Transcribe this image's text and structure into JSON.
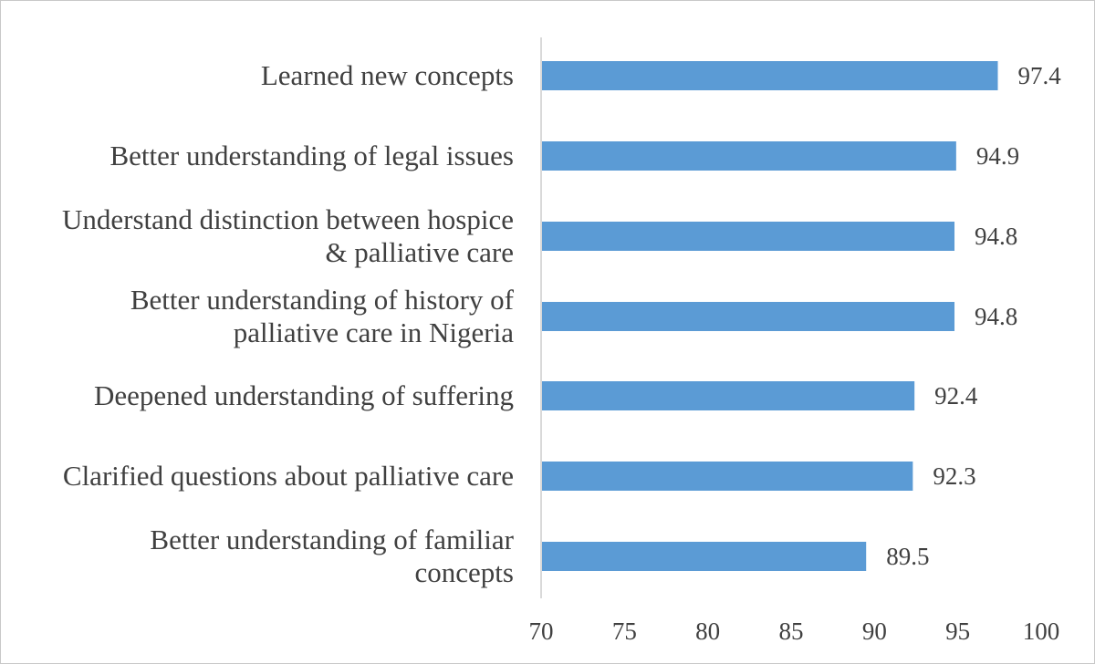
{
  "chart_data": {
    "type": "bar",
    "orientation": "horizontal",
    "title": "",
    "xlabel": "",
    "ylabel": "",
    "categories": [
      [
        "Learned new concepts"
      ],
      [
        "Better understanding of legal issues"
      ],
      [
        "Understand distinction between hospice",
        "& palliative care"
      ],
      [
        "Better understanding of history of",
        "palliative care in Nigeria"
      ],
      [
        "Deepened understanding of suffering"
      ],
      [
        "Clarified questions about palliative care"
      ],
      [
        "Better understanding of familiar",
        "concepts"
      ]
    ],
    "values": [
      97.4,
      94.9,
      94.8,
      94.8,
      92.4,
      92.3,
      89.5
    ],
    "value_labels": [
      "97.4",
      "94.9",
      "94.8",
      "94.8",
      "92.4",
      "92.3",
      "89.5"
    ],
    "xlim": [
      70,
      100
    ],
    "xticks": [
      "70",
      "75",
      "80",
      "85",
      "90",
      "95",
      "100"
    ],
    "bar_color": "#5b9bd5",
    "axis_color": "#d9d9d9",
    "text_color": "#404040",
    "grid": false,
    "legend": "none"
  }
}
